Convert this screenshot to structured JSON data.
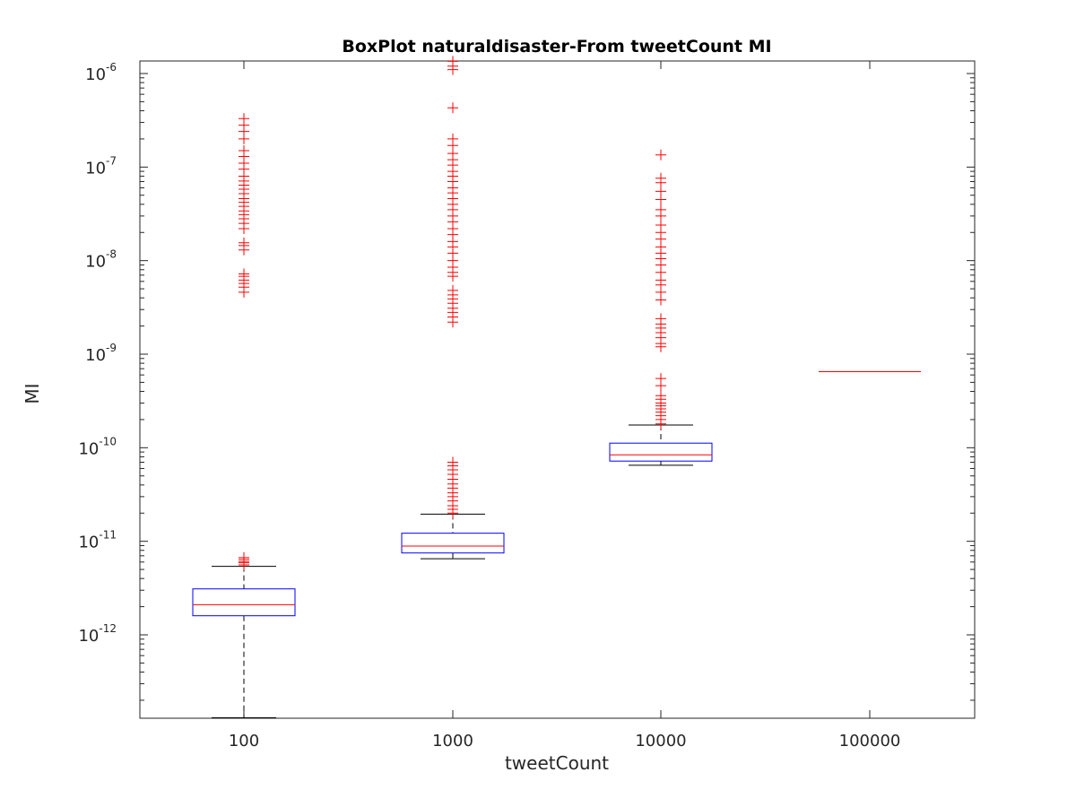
{
  "chart_data": {
    "type": "box",
    "title": "BoxPlot naturaldisaster-From tweetCount MI",
    "xlabel": "tweetCount",
    "ylabel": "MI",
    "yscale": "log",
    "ylim": [
      1.3e-13,
      1.4e-06
    ],
    "grid": false,
    "categories": [
      "100",
      "1000",
      "10000",
      "100000"
    ],
    "y_ticks": [
      {
        "value": 1e-12,
        "base": "10",
        "exp": "-12"
      },
      {
        "value": 1e-11,
        "base": "10",
        "exp": "-11"
      },
      {
        "value": 1e-10,
        "base": "10",
        "exp": "-10"
      },
      {
        "value": 1e-09,
        "base": "10",
        "exp": "-9"
      },
      {
        "value": 1e-08,
        "base": "10",
        "exp": "-8"
      },
      {
        "value": 1e-07,
        "base": "10",
        "exp": "-7"
      },
      {
        "value": 1e-06,
        "base": "10",
        "exp": "-6"
      }
    ],
    "boxes": [
      {
        "category": "100",
        "whisker_low": 1.3e-13,
        "q1": 1.6e-12,
        "median": 2.1e-12,
        "q3": 3.1e-12,
        "whisker_high": 5.4e-12,
        "outliers": [
          5.6e-12,
          5.9e-12,
          6.1e-12,
          6.4e-12,
          6.7e-12,
          4.6e-09,
          5.2e-09,
          5.7e-09,
          6.2e-09,
          6.8e-09,
          7.2e-09,
          1.3e-08,
          1.45e-08,
          1.55e-08,
          2.2e-08,
          2.5e-08,
          2.8e-08,
          3.1e-08,
          3.4e-08,
          3.8e-08,
          4.2e-08,
          4.6e-08,
          5.2e-08,
          5.8e-08,
          6.4e-08,
          7.1e-08,
          8e-08,
          9.5e-08,
          1.1e-07,
          1.3e-07,
          1.5e-07,
          2e-07,
          2.4e-07,
          2.8e-07,
          3.3e-07
        ]
      },
      {
        "category": "1000",
        "whisker_low": 6.5e-12,
        "q1": 7.5e-12,
        "median": 8.9e-12,
        "q3": 1.22e-11,
        "whisker_high": 1.95e-11,
        "outliers": [
          2e-11,
          2.2e-11,
          2.4e-11,
          2.7e-11,
          3e-11,
          3.3e-11,
          3.7e-11,
          4.1e-11,
          4.6e-11,
          5.2e-11,
          5.8e-11,
          6.4e-11,
          7e-11,
          2.2e-09,
          2.5e-09,
          2.8e-09,
          3.1e-09,
          3.5e-09,
          3.9e-09,
          4.3e-09,
          4.8e-09,
          6.8e-09,
          7.5e-09,
          8.5e-09,
          1e-08,
          1.2e-08,
          1.4e-08,
          1.6e-08,
          1.9e-08,
          2.2e-08,
          2.6e-08,
          3e-08,
          3.5e-08,
          4e-08,
          4.6e-08,
          5.3e-08,
          6e-08,
          7e-08,
          8e-08,
          9e-08,
          1.05e-07,
          1.2e-07,
          1.4e-07,
          1.7e-07,
          2e-07,
          4.3e-07,
          1.1e-06,
          1.2e-06,
          1.35e-06
        ]
      },
      {
        "category": "10000",
        "whisker_low": 6.5e-11,
        "q1": 7.2e-11,
        "median": 8.4e-11,
        "q3": 1.12e-10,
        "whisker_high": 1.75e-10,
        "outliers": [
          1.8e-10,
          2e-10,
          2.2e-10,
          2.4e-10,
          2.6e-10,
          2.8e-10,
          3e-10,
          3.3e-10,
          3.6e-10,
          4.6e-10,
          5.5e-10,
          1.2e-09,
          1.3e-09,
          1.5e-09,
          1.7e-09,
          1.9e-09,
          2.1e-09,
          2.4e-09,
          3.8e-09,
          4.6e-09,
          5.5e-09,
          6.2e-09,
          7.5e-09,
          9e-09,
          1.05e-08,
          1.2e-08,
          1.4e-08,
          1.7e-08,
          2e-08,
          2.4e-08,
          3e-08,
          3.5e-08,
          4.5e-08,
          5.5e-08,
          6.8e-08,
          7.6e-08,
          1.35e-07
        ]
      },
      {
        "category": "100000",
        "whisker_low": 6.5e-10,
        "q1": 6.5e-10,
        "median": 6.5e-10,
        "q3": 6.5e-10,
        "whisker_high": 6.5e-10,
        "outliers": []
      }
    ],
    "colors": {
      "box": "#0000ff",
      "median": "#ff0000",
      "outlier": "#ff0000",
      "whisker": "#000000",
      "axis": "#262626"
    }
  }
}
